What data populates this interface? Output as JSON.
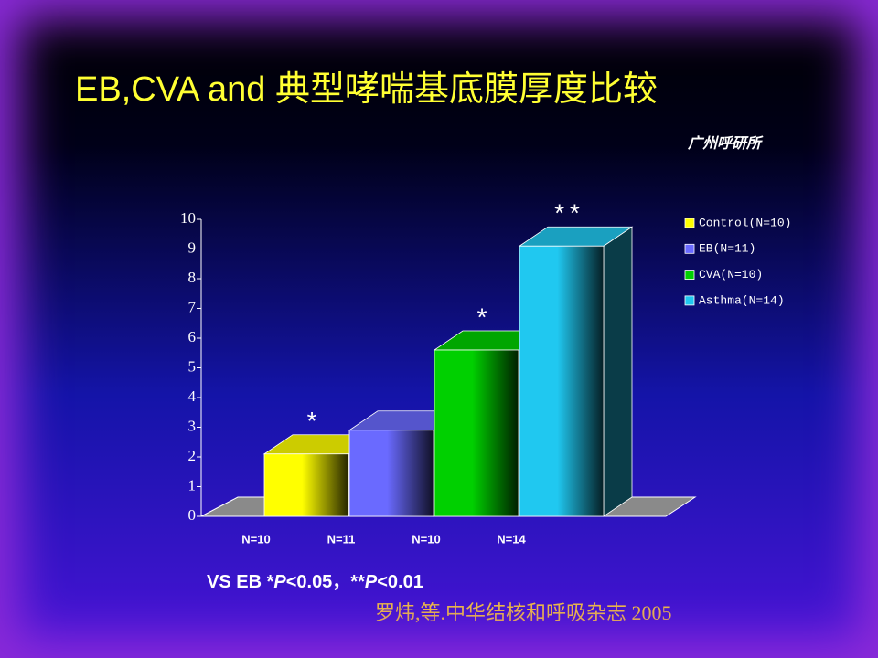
{
  "chart_data": {
    "type": "bar3d",
    "title": "EB,CVA and 典型哮喘基底膜厚度比较",
    "subtitle": "广州呼研所",
    "categories": [
      "N=10",
      "N=11",
      "N=10",
      "N=14"
    ],
    "values": [
      2.1,
      2.9,
      5.6,
      9.1
    ],
    "colors": [
      "#ffff00",
      "#6a6aff",
      "#00d000",
      "#20c8f0"
    ],
    "legend": [
      "Control(N=10)",
      "EB(N=11)",
      "CVA(N=10)",
      "Asthma(N=14)"
    ],
    "annotations": [
      "*",
      null,
      "*",
      "**"
    ],
    "ylim": [
      0,
      10
    ],
    "yticks": [
      0,
      1,
      2,
      3,
      4,
      5,
      6,
      7,
      8,
      9,
      10
    ],
    "footnote": [
      "VS  EB  *",
      "P",
      "<0.05，**",
      "P",
      "<0.01"
    ],
    "source": "罗炜,等.中华结核和呼吸杂志 2005"
  }
}
